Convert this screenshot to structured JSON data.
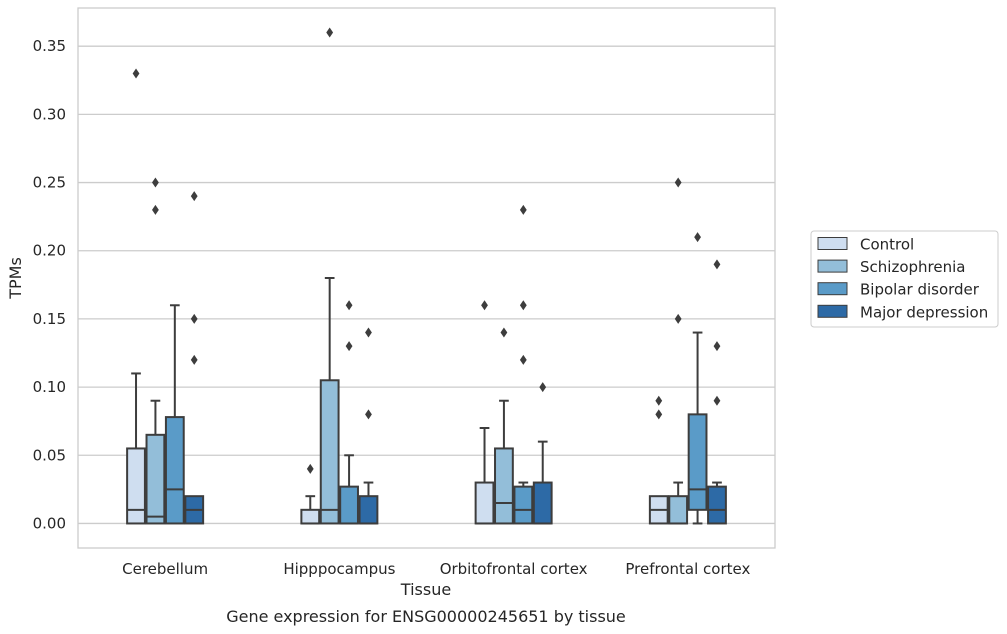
{
  "chart_data": {
    "type": "box",
    "title": "",
    "caption": "Gene expression for ENSG00000245651 by tissue",
    "xlabel": "Tissue",
    "ylabel": "TPMs",
    "ylim": [
      -0.018,
      0.378
    ],
    "yticks": [
      0.0,
      0.05,
      0.1,
      0.15,
      0.2,
      0.25,
      0.3,
      0.35
    ],
    "ytick_labels": [
      "0.00",
      "0.05",
      "0.10",
      "0.15",
      "0.20",
      "0.25",
      "0.30",
      "0.35"
    ],
    "grid": "horizontal",
    "legend_position": "right",
    "categories": [
      "Cerebellum",
      "Hipppocampus",
      "Orbitofrontal cortex",
      "Prefrontal cortex"
    ],
    "series": [
      {
        "name": "Control",
        "color": "#cfdef0",
        "boxes": [
          {
            "q1": 0.0,
            "median": 0.01,
            "q3": 0.055,
            "whislo": 0.0,
            "whishi": 0.11,
            "fliers": [
              0.33
            ]
          },
          {
            "q1": 0.0,
            "median": 0.0,
            "q3": 0.01,
            "whislo": 0.0,
            "whishi": 0.02,
            "fliers": [
              0.04
            ]
          },
          {
            "q1": 0.0,
            "median": 0.0,
            "q3": 0.03,
            "whislo": 0.0,
            "whishi": 0.07,
            "fliers": [
              0.16
            ]
          },
          {
            "q1": 0.0,
            "median": 0.01,
            "q3": 0.02,
            "whislo": 0.0,
            "whishi": 0.02,
            "fliers": [
              0.08,
              0.09
            ]
          }
        ]
      },
      {
        "name": "Schizophrenia",
        "color": "#93bed9",
        "boxes": [
          {
            "q1": 0.0,
            "median": 0.005,
            "q3": 0.065,
            "whislo": 0.0,
            "whishi": 0.09,
            "fliers": [
              0.23,
              0.25
            ]
          },
          {
            "q1": 0.0,
            "median": 0.01,
            "q3": 0.105,
            "whislo": 0.0,
            "whishi": 0.18,
            "fliers": [
              0.36
            ]
          },
          {
            "q1": 0.0,
            "median": 0.015,
            "q3": 0.055,
            "whislo": 0.0,
            "whishi": 0.09,
            "fliers": [
              0.14
            ]
          },
          {
            "q1": 0.0,
            "median": 0.0,
            "q3": 0.02,
            "whislo": 0.0,
            "whishi": 0.03,
            "fliers": [
              0.15,
              0.25
            ]
          }
        ]
      },
      {
        "name": "Bipolar disorder",
        "color": "#5a9bc8",
        "boxes": [
          {
            "q1": 0.0,
            "median": 0.025,
            "q3": 0.078,
            "whislo": 0.0,
            "whishi": 0.16,
            "fliers": []
          },
          {
            "q1": 0.0,
            "median": 0.0,
            "q3": 0.027,
            "whislo": 0.0,
            "whishi": 0.05,
            "fliers": [
              0.13,
              0.16
            ]
          },
          {
            "q1": 0.0,
            "median": 0.01,
            "q3": 0.027,
            "whislo": 0.0,
            "whishi": 0.03,
            "fliers": [
              0.12,
              0.16,
              0.23
            ]
          },
          {
            "q1": 0.01,
            "median": 0.025,
            "q3": 0.08,
            "whislo": 0.0,
            "whishi": 0.14,
            "fliers": [
              0.21
            ]
          }
        ]
      },
      {
        "name": "Major depression",
        "color": "#2d6aa6",
        "boxes": [
          {
            "q1": 0.0,
            "median": 0.01,
            "q3": 0.02,
            "whislo": 0.0,
            "whishi": 0.02,
            "fliers": [
              0.12,
              0.15,
              0.24
            ]
          },
          {
            "q1": 0.0,
            "median": 0.0,
            "q3": 0.02,
            "whislo": 0.0,
            "whishi": 0.03,
            "fliers": [
              0.08,
              0.14
            ]
          },
          {
            "q1": 0.0,
            "median": 0.0,
            "q3": 0.03,
            "whislo": 0.0,
            "whishi": 0.06,
            "fliers": [
              0.1
            ]
          },
          {
            "q1": 0.0,
            "median": 0.01,
            "q3": 0.027,
            "whislo": 0.0,
            "whishi": 0.03,
            "fliers": [
              0.09,
              0.13,
              0.19
            ]
          }
        ]
      }
    ],
    "colors": {
      "grid": "#cccccc",
      "frame": "#cccccc",
      "box_edge": "#3d3d3d",
      "flier": "#3d3d3d"
    }
  }
}
